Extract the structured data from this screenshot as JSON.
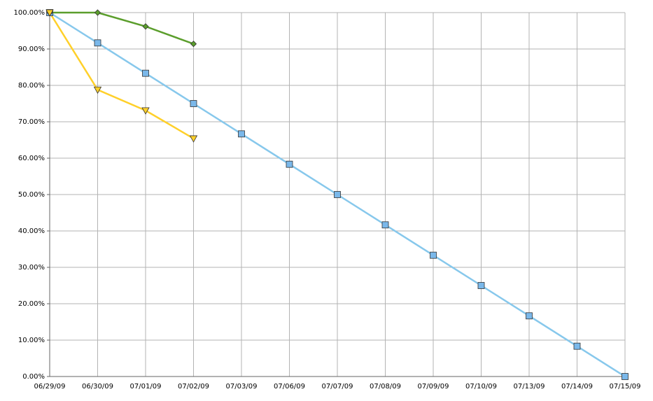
{
  "chart_data": {
    "type": "line",
    "categories": [
      "06/29/09",
      "06/30/09",
      "07/01/09",
      "07/02/09",
      "07/03/09",
      "07/06/09",
      "07/07/09",
      "07/08/09",
      "07/09/09",
      "07/10/09",
      "07/13/09",
      "07/14/09",
      "07/15/09"
    ],
    "series": [
      {
        "color": "#87c8ec",
        "marker": "square",
        "marker_fill": "#7ab8ea",
        "values": [
          100,
          91.67,
          83.33,
          75,
          66.67,
          58.33,
          50,
          41.67,
          33.33,
          25,
          16.67,
          8.33,
          0
        ]
      },
      {
        "color": "#5b9e2c",
        "marker": "diamond",
        "marker_fill": "#5b9e2c",
        "values": [
          100,
          100,
          96.2,
          91.4,
          null,
          null,
          null,
          null,
          null,
          null,
          null,
          null,
          null
        ]
      },
      {
        "color": "#ffd02a",
        "marker": "triangle-down",
        "marker_fill": "#ffd02a",
        "values": [
          100,
          78.8,
          73.1,
          65.4,
          null,
          null,
          null,
          null,
          null,
          null,
          null,
          null,
          null
        ]
      }
    ],
    "ylim": [
      0,
      100
    ],
    "yticks": [
      {
        "value": 0,
        "label": "0.00%"
      },
      {
        "value": 10,
        "label": "10.00%"
      },
      {
        "value": 20,
        "label": "20.00%"
      },
      {
        "value": 30,
        "label": "30.00%"
      },
      {
        "value": 40,
        "label": "40.00%"
      },
      {
        "value": 50,
        "label": "50.00%"
      },
      {
        "value": 60,
        "label": "60.00%"
      },
      {
        "value": 70,
        "label": "70.00%"
      },
      {
        "value": 80,
        "label": "80.00%"
      },
      {
        "value": 90,
        "label": "90.00%"
      },
      {
        "value": 100,
        "label": "100.00%"
      }
    ],
    "grid": true
  }
}
